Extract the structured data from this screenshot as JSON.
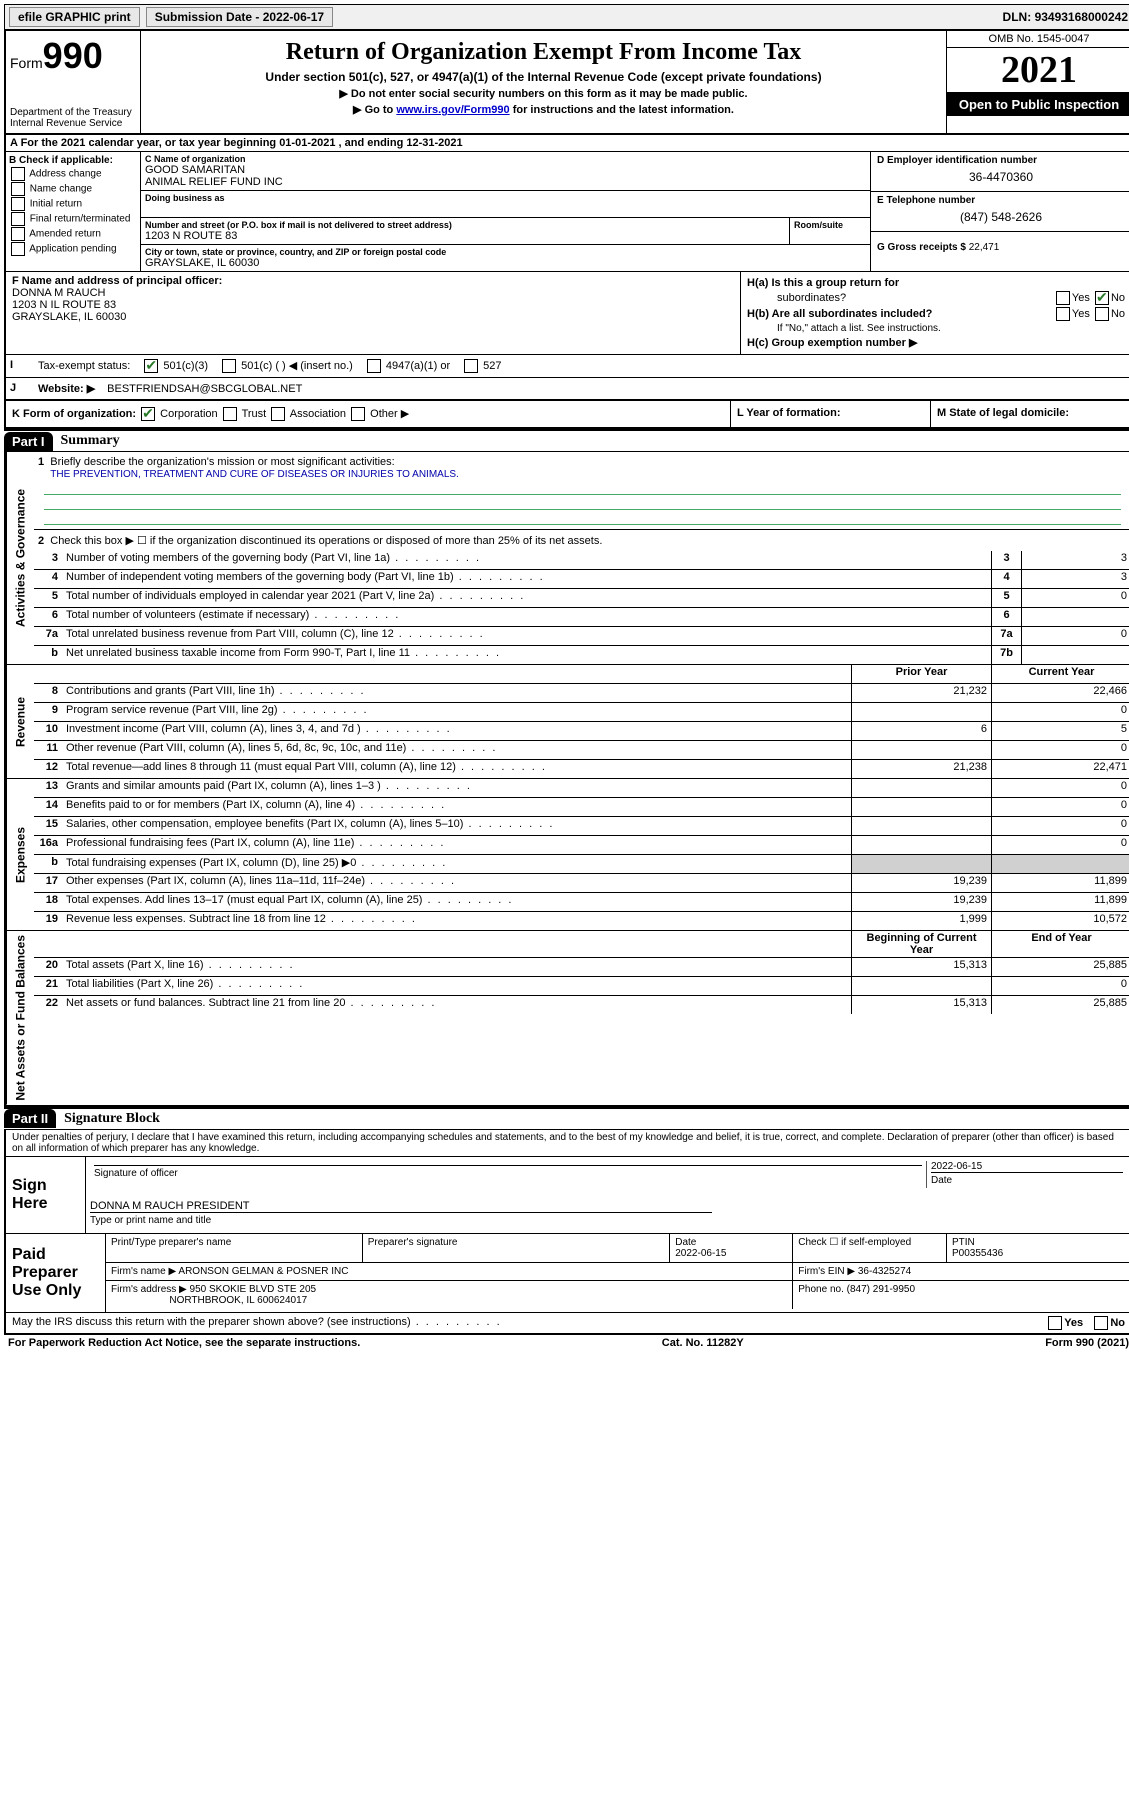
{
  "topbar": {
    "efile": "efile GRAPHIC print",
    "submission_label": "Submission Date",
    "submission_date": "2022-06-17",
    "dln_label": "DLN:",
    "dln": "93493168000242"
  },
  "header": {
    "form_word": "Form",
    "form_num": "990",
    "dept": "Department of the Treasury",
    "irs": "Internal Revenue Service",
    "title": "Return of Organization Exempt From Income Tax",
    "subtitle": "Under section 501(c), 527, or 4947(a)(1) of the Internal Revenue Code (except private foundations)",
    "note1": "▶ Do not enter social security numbers on this form as it may be made public.",
    "note2_pre": "▶ Go to ",
    "note2_link": "www.irs.gov/Form990",
    "note2_post": " for instructions and the latest information.",
    "omb": "OMB No. 1545-0047",
    "year": "2021",
    "inspection": "Open to Public Inspection"
  },
  "section_a": "A For the 2021 calendar year, or tax year beginning 01-01-2021   , and ending 12-31-2021",
  "col_b": {
    "title": "B Check if applicable:",
    "items": [
      "Address change",
      "Name change",
      "Initial return",
      "Final return/terminated",
      "Amended return",
      "Application pending"
    ]
  },
  "col_c": {
    "name_lbl": "C Name of organization",
    "name1": "GOOD SAMARITAN",
    "name2": "ANIMAL RELIEF FUND INC",
    "dba_lbl": "Doing business as",
    "addr_lbl": "Number and street (or P.O. box if mail is not delivered to street address)",
    "addr": "1203 N ROUTE 83",
    "room_lbl": "Room/suite",
    "city_lbl": "City or town, state or province, country, and ZIP or foreign postal code",
    "city": "GRAYSLAKE, IL  60030"
  },
  "col_d": {
    "ein_lbl": "D Employer identification number",
    "ein": "36-4470360",
    "phone_lbl": "E Telephone number",
    "phone": "(847) 548-2626",
    "gross_lbl": "G Gross receipts $",
    "gross": "22,471"
  },
  "row_f": {
    "lbl": "F Name and address of principal officer:",
    "name": "DONNA M RAUCH",
    "addr1": "1203 N IL ROUTE 83",
    "addr2": "GRAYSLAKE, IL  60030"
  },
  "row_h": {
    "ha_lbl": "H(a)  Is this a group return for",
    "ha_lbl2": "subordinates?",
    "hb_lbl": "H(b)  Are all subordinates included?",
    "hb_note": "If \"No,\" attach a list. See instructions.",
    "hc_lbl": "H(c)  Group exemption number ▶",
    "yes": "Yes",
    "no": "No"
  },
  "row_i": {
    "lbl": "Tax-exempt status:",
    "opts": [
      "501(c)(3)",
      "501(c) (  ) ◀ (insert no.)",
      "4947(a)(1) or",
      "527"
    ]
  },
  "row_j": {
    "lbl": "Website: ▶",
    "val": "BESTFRIENDSAH@SBCGLOBAL.NET"
  },
  "row_k": {
    "lbl": "K Form of organization:",
    "opts": [
      "Corporation",
      "Trust",
      "Association",
      "Other ▶"
    ],
    "l_lbl": "L Year of formation:",
    "m_lbl": "M State of legal domicile:"
  },
  "part1": {
    "label": "Part I",
    "title": "Summary",
    "line1_lbl": "Briefly describe the organization's mission or most significant activities:",
    "line1_val": "THE PREVENTION, TREATMENT AND CURE OF DISEASES OR INJURIES TO ANIMALS.",
    "line2": "Check this box ▶ ☐  if the organization discontinued its operations or disposed of more than 25% of its net assets.",
    "vtab_gov": "Activities & Governance",
    "vtab_rev": "Revenue",
    "vtab_exp": "Expenses",
    "vtab_net": "Net Assets or Fund Balances",
    "lines_gov": [
      {
        "n": "3",
        "t": "Number of voting members of the governing body (Part VI, line 1a)",
        "bn": "3",
        "bv": "3"
      },
      {
        "n": "4",
        "t": "Number of independent voting members of the governing body (Part VI, line 1b)",
        "bn": "4",
        "bv": "3"
      },
      {
        "n": "5",
        "t": "Total number of individuals employed in calendar year 2021 (Part V, line 2a)",
        "bn": "5",
        "bv": "0"
      },
      {
        "n": "6",
        "t": "Total number of volunteers (estimate if necessary)",
        "bn": "6",
        "bv": ""
      },
      {
        "n": "7a",
        "t": "Total unrelated business revenue from Part VIII, column (C), line 12",
        "bn": "7a",
        "bv": "0"
      },
      {
        "n": "b",
        "t": "Net unrelated business taxable income from Form 990-T, Part I, line 11",
        "bn": "7b",
        "bv": ""
      }
    ],
    "hdr_py": "Prior Year",
    "hdr_cy": "Current Year",
    "lines_rev": [
      {
        "n": "8",
        "t": "Contributions and grants (Part VIII, line 1h)",
        "py": "21,232",
        "cy": "22,466"
      },
      {
        "n": "9",
        "t": "Program service revenue (Part VIII, line 2g)",
        "py": "",
        "cy": "0"
      },
      {
        "n": "10",
        "t": "Investment income (Part VIII, column (A), lines 3, 4, and 7d )",
        "py": "6",
        "cy": "5"
      },
      {
        "n": "11",
        "t": "Other revenue (Part VIII, column (A), lines 5, 6d, 8c, 9c, 10c, and 11e)",
        "py": "",
        "cy": "0"
      },
      {
        "n": "12",
        "t": "Total revenue—add lines 8 through 11 (must equal Part VIII, column (A), line 12)",
        "py": "21,238",
        "cy": "22,471"
      }
    ],
    "lines_exp": [
      {
        "n": "13",
        "t": "Grants and similar amounts paid (Part IX, column (A), lines 1–3 )",
        "py": "",
        "cy": "0"
      },
      {
        "n": "14",
        "t": "Benefits paid to or for members (Part IX, column (A), line 4)",
        "py": "",
        "cy": "0"
      },
      {
        "n": "15",
        "t": "Salaries, other compensation, employee benefits (Part IX, column (A), lines 5–10)",
        "py": "",
        "cy": "0"
      },
      {
        "n": "16a",
        "t": "Professional fundraising fees (Part IX, column (A), line 11e)",
        "py": "",
        "cy": "0"
      },
      {
        "n": "b",
        "t": "Total fundraising expenses (Part IX, column (D), line 25) ▶0",
        "py": "grey",
        "cy": "grey"
      },
      {
        "n": "17",
        "t": "Other expenses (Part IX, column (A), lines 11a–11d, 11f–24e)",
        "py": "19,239",
        "cy": "11,899"
      },
      {
        "n": "18",
        "t": "Total expenses. Add lines 13–17 (must equal Part IX, column (A), line 25)",
        "py": "19,239",
        "cy": "11,899"
      },
      {
        "n": "19",
        "t": "Revenue less expenses. Subtract line 18 from line 12",
        "py": "1,999",
        "cy": "10,572"
      }
    ],
    "hdr_boy": "Beginning of Current Year",
    "hdr_eoy": "End of Year",
    "lines_net": [
      {
        "n": "20",
        "t": "Total assets (Part X, line 16)",
        "py": "15,313",
        "cy": "25,885"
      },
      {
        "n": "21",
        "t": "Total liabilities (Part X, line 26)",
        "py": "",
        "cy": "0"
      },
      {
        "n": "22",
        "t": "Net assets or fund balances. Subtract line 21 from line 20",
        "py": "15,313",
        "cy": "25,885"
      }
    ]
  },
  "part2": {
    "label": "Part II",
    "title": "Signature Block",
    "decl": "Under penalties of perjury, I declare that I have examined this return, including accompanying schedules and statements, and to the best of my knowledge and belief, it is true, correct, and complete. Declaration of preparer (other than officer) is based on all information of which preparer has any knowledge.",
    "sign_here": "Sign Here",
    "sig_officer": "Signature of officer",
    "date_lbl": "Date",
    "date_val": "2022-06-15",
    "officer_name": "DONNA M RAUCH  PRESIDENT",
    "type_name": "Type or print name and title",
    "paid": "Paid Preparer Use Only",
    "prep_name_lbl": "Print/Type preparer's name",
    "prep_sig_lbl": "Preparer's signature",
    "prep_date_lbl": "Date",
    "prep_date": "2022-06-15",
    "self_emp": "Check ☐ if self-employed",
    "ptin_lbl": "PTIN",
    "ptin": "P00355436",
    "firm_name_lbl": "Firm's name    ▶",
    "firm_name": "ARONSON GELMAN & POSNER INC",
    "firm_ein_lbl": "Firm's EIN ▶",
    "firm_ein": "36-4325274",
    "firm_addr_lbl": "Firm's address ▶",
    "firm_addr1": "950 SKOKIE BLVD STE 205",
    "firm_addr2": "NORTHBROOK, IL  600624017",
    "firm_phone_lbl": "Phone no.",
    "firm_phone": "(847) 291-9950",
    "discuss": "May the IRS discuss this return with the preparer shown above? (see instructions)"
  },
  "footer": {
    "left": "For Paperwork Reduction Act Notice, see the separate instructions.",
    "mid": "Cat. No. 11282Y",
    "right": "Form 990 (2021)"
  }
}
